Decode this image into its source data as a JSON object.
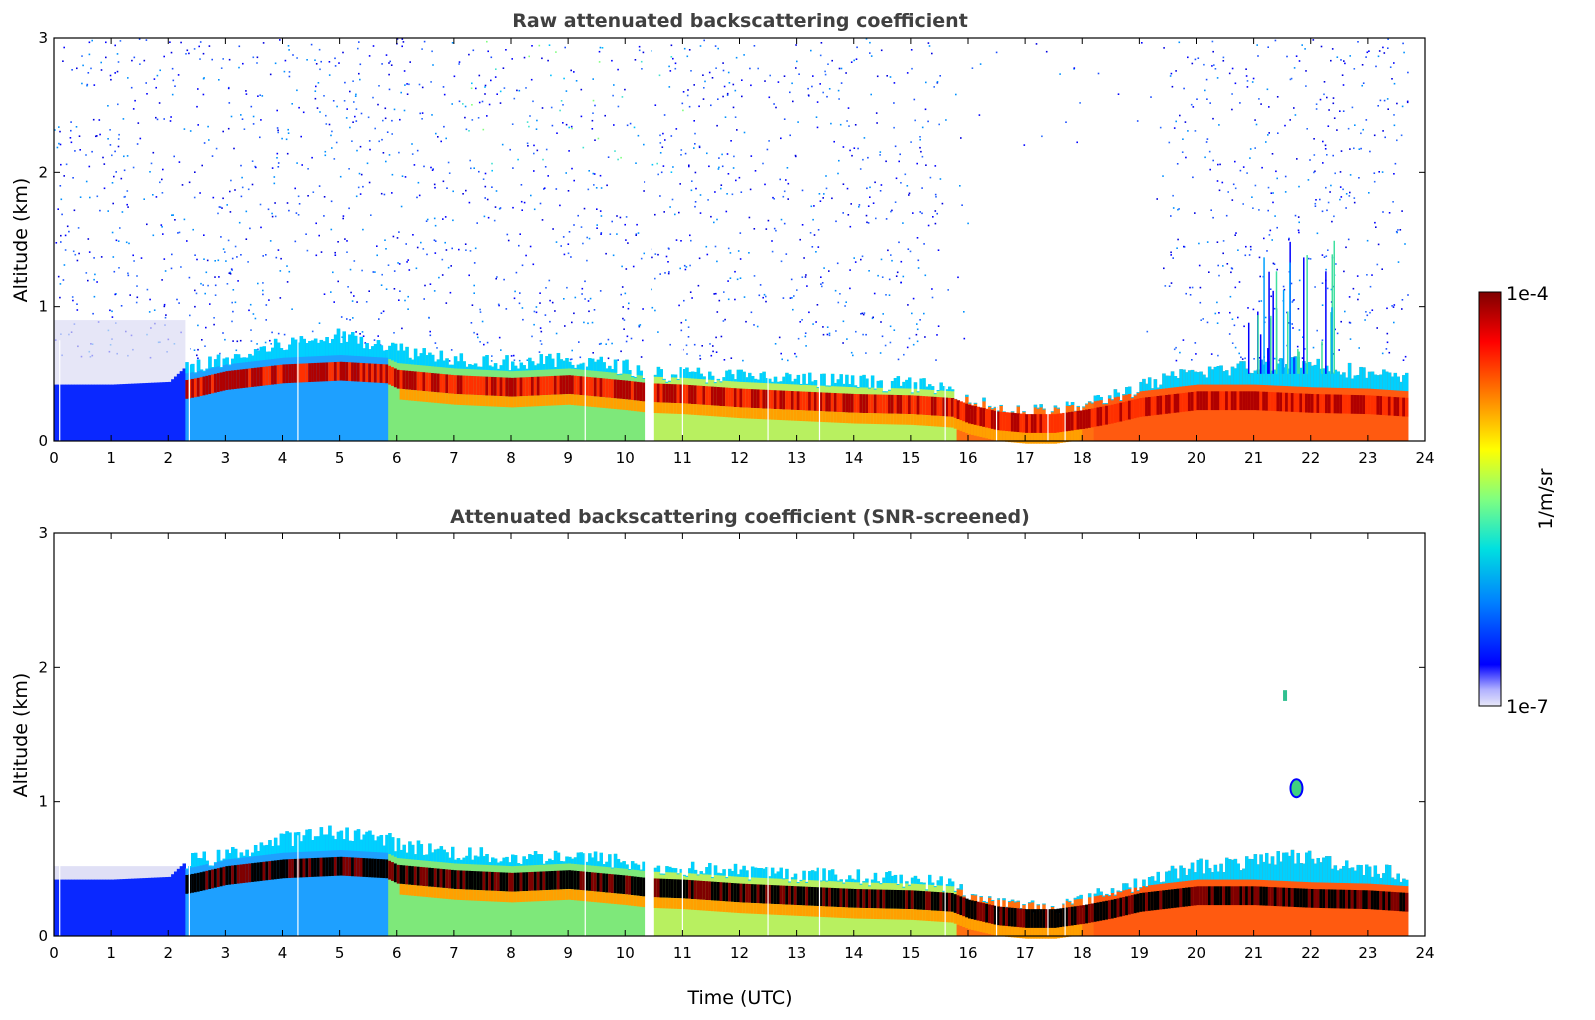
{
  "chart_data": [
    {
      "type": "heatmap",
      "id": "raw",
      "title": "Raw attenuated backscattering coefficient",
      "xlabel": "",
      "ylabel": "Altitude (km)",
      "xlim": [
        0,
        24
      ],
      "ylim": [
        0,
        3
      ],
      "xticks": [
        0,
        1,
        2,
        3,
        4,
        5,
        6,
        7,
        8,
        9,
        10,
        11,
        12,
        13,
        14,
        15,
        16,
        17,
        18,
        19,
        20,
        21,
        22,
        23,
        24
      ],
      "yticks": [
        0,
        1,
        2,
        3
      ],
      "data_gaps_utc": [
        10.4
      ],
      "layer_top_km": [
        [
          0,
          0.42
        ],
        [
          1,
          0.42
        ],
        [
          2,
          0.44
        ],
        [
          2.3,
          0.56
        ],
        [
          2.8,
          0.58
        ],
        [
          3,
          0.6
        ],
        [
          4,
          0.72
        ],
        [
          5,
          0.78
        ],
        [
          5.8,
          0.72
        ],
        [
          6,
          0.68
        ],
        [
          7,
          0.62
        ],
        [
          8,
          0.58
        ],
        [
          9,
          0.6
        ],
        [
          10,
          0.55
        ],
        [
          10.4,
          0.5
        ],
        [
          11,
          0.5
        ],
        [
          12,
          0.48
        ],
        [
          13,
          0.46
        ],
        [
          14,
          0.44
        ],
        [
          15,
          0.42
        ],
        [
          15.7,
          0.38
        ],
        [
          16,
          0.3
        ],
        [
          16.5,
          0.24
        ],
        [
          17,
          0.22
        ],
        [
          17.5,
          0.22
        ],
        [
          18,
          0.26
        ],
        [
          18.5,
          0.34
        ],
        [
          19,
          0.4
        ],
        [
          19.5,
          0.46
        ],
        [
          20,
          0.52
        ],
        [
          21,
          0.55
        ],
        [
          21.5,
          0.6
        ],
        [
          22,
          0.58
        ],
        [
          23,
          0.5
        ],
        [
          23.7,
          0.45
        ]
      ],
      "peak_layer_km": [
        [
          0,
          0.2
        ],
        [
          2.5,
          0.4
        ],
        [
          3,
          0.45
        ],
        [
          4,
          0.5
        ],
        [
          5,
          0.52
        ],
        [
          5.8,
          0.5
        ],
        [
          6,
          0.46
        ],
        [
          7,
          0.42
        ],
        [
          8,
          0.4
        ],
        [
          9,
          0.42
        ],
        [
          10,
          0.38
        ],
        [
          10.4,
          0.36
        ],
        [
          11,
          0.35
        ],
        [
          12,
          0.32
        ],
        [
          13,
          0.3
        ],
        [
          14,
          0.28
        ],
        [
          15,
          0.27
        ],
        [
          15.7,
          0.25
        ],
        [
          16,
          0.2
        ],
        [
          16.5,
          0.15
        ],
        [
          17,
          0.13
        ],
        [
          17.5,
          0.13
        ],
        [
          18,
          0.16
        ],
        [
          18.5,
          0.2
        ],
        [
          19,
          0.25
        ],
        [
          20,
          0.3
        ],
        [
          21,
          0.3
        ],
        [
          22,
          0.28
        ],
        [
          23,
          0.27
        ],
        [
          23.7,
          0.25
        ]
      ]
    },
    {
      "type": "heatmap",
      "id": "screened",
      "title": "Attenuated backscattering coefficient (SNR-screened)",
      "xlabel": "Time (UTC)",
      "ylabel": "Altitude (km)",
      "xlim": [
        0,
        24
      ],
      "ylim": [
        0,
        3
      ],
      "xticks": [
        0,
        1,
        2,
        3,
        4,
        5,
        6,
        7,
        8,
        9,
        10,
        11,
        12,
        13,
        14,
        15,
        16,
        17,
        18,
        19,
        20,
        21,
        22,
        23,
        24
      ],
      "yticks": [
        0,
        1,
        2,
        3
      ],
      "data_gaps_utc": [
        10.4
      ],
      "cloud_features": [
        {
          "time_utc": 21.75,
          "alt_km": 1.1,
          "note": "isolated cloud"
        },
        {
          "time_utc": 21.55,
          "alt_km": 1.75,
          "note": "thin cloud"
        }
      ]
    }
  ],
  "colorbar": {
    "label": "1/m/sr",
    "min_label": "1e-7",
    "max_label": "1e-4",
    "scale": "log",
    "range": [
      1e-07,
      0.0001
    ],
    "colors": [
      "#e8e8f8",
      "#b0b0ff",
      "#0000ff",
      "#0080ff",
      "#00e0e0",
      "#80ff80",
      "#ffff00",
      "#ff8000",
      "#ff0000",
      "#7f0000"
    ]
  }
}
